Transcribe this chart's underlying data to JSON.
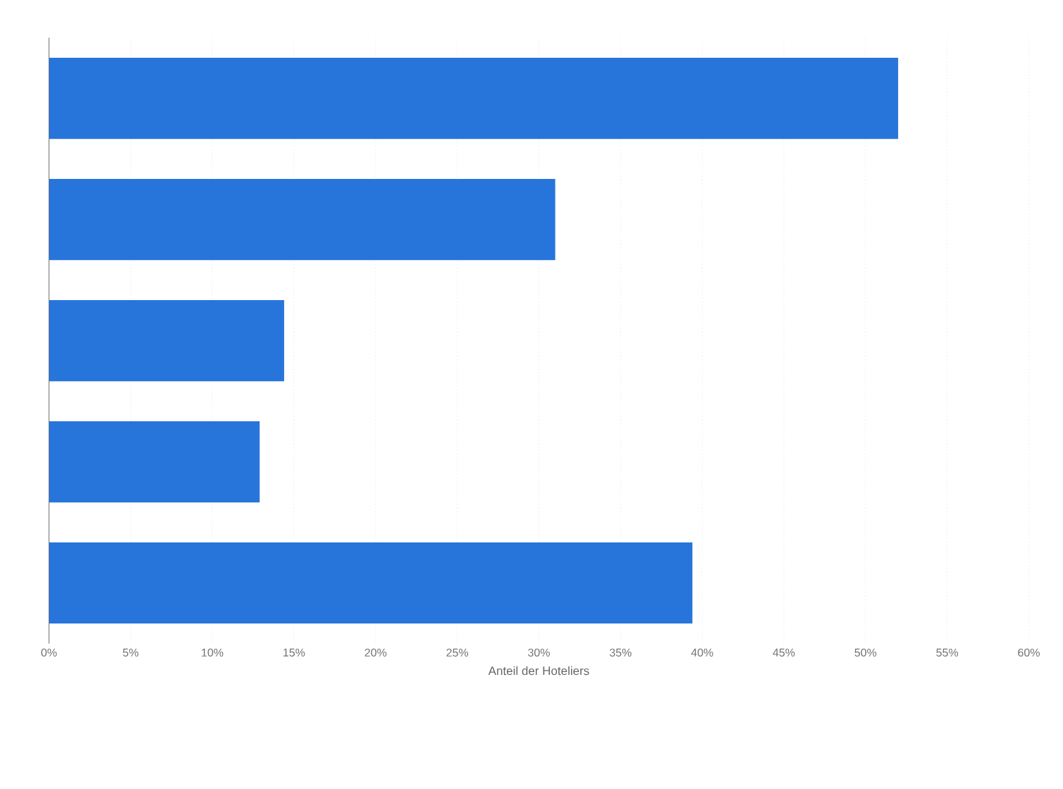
{
  "chart_data": {
    "type": "bar",
    "orientation": "horizontal",
    "xlabel": "Anteil der Hoteliers",
    "categories": [
      null,
      null,
      null,
      null,
      null
    ],
    "values": [
      52,
      31,
      14.4,
      12.9,
      39.4
    ],
    "color": "#2775db",
    "xlim": [
      0,
      60
    ],
    "xticks": [
      {
        "value": 0,
        "label": "0%"
      },
      {
        "value": 5,
        "label": "5%"
      },
      {
        "value": 10,
        "label": "10%"
      },
      {
        "value": 15,
        "label": "15%"
      },
      {
        "value": 20,
        "label": "20%"
      },
      {
        "value": 25,
        "label": "25%"
      },
      {
        "value": 30,
        "label": "30%"
      },
      {
        "value": 35,
        "label": "35%"
      },
      {
        "value": 40,
        "label": "40%"
      },
      {
        "value": 45,
        "label": "45%"
      },
      {
        "value": 50,
        "label": "50%"
      },
      {
        "value": 55,
        "label": "55%"
      },
      {
        "value": 60,
        "label": "60%"
      }
    ],
    "grid": "x"
  }
}
